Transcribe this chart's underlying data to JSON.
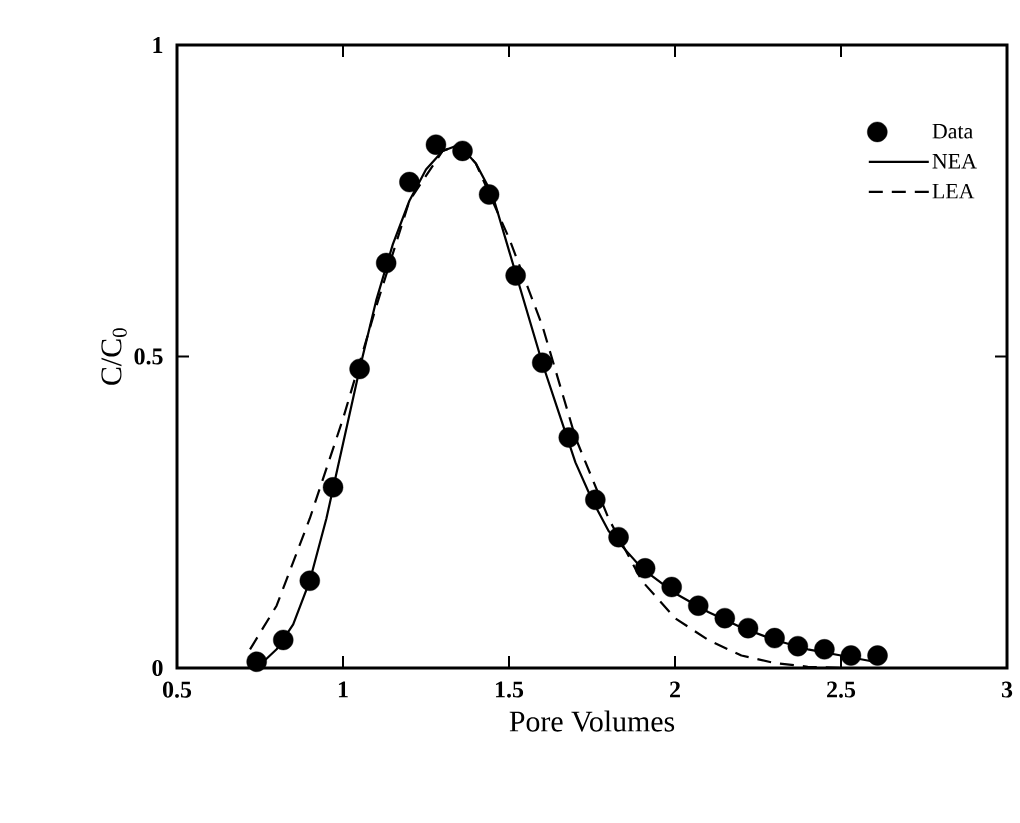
{
  "chart_data": {
    "type": "line",
    "xlabel": "Pore Volumes",
    "ylabel": "C/C$_{0}$",
    "xlim": [
      0.5,
      3
    ],
    "ylim": [
      0,
      1
    ],
    "xticks": [
      0.5,
      1,
      1.5,
      2,
      2.5,
      3
    ],
    "yticks": [
      0,
      0.5,
      1
    ],
    "grid": false,
    "legend": "top right",
    "series": [
      {
        "name": "Data",
        "type": "scatter",
        "marker": "circle",
        "color": "#000000",
        "x": [
          0.74,
          0.82,
          0.9,
          0.97,
          1.05,
          1.13,
          1.2,
          1.28,
          1.36,
          1.44,
          1.52,
          1.6,
          1.68,
          1.76,
          1.83,
          1.91,
          1.99,
          2.07,
          2.15,
          2.22,
          2.3,
          2.37,
          2.45,
          2.53,
          2.61
        ],
        "values": [
          0.01,
          0.045,
          0.14,
          0.29,
          0.48,
          0.65,
          0.78,
          0.84,
          0.83,
          0.76,
          0.63,
          0.49,
          0.37,
          0.27,
          0.21,
          0.16,
          0.13,
          0.1,
          0.08,
          0.064,
          0.048,
          0.035,
          0.03,
          0.02,
          0.02
        ]
      },
      {
        "name": "NEA",
        "line_style": "solid",
        "marker": "none",
        "color": "#000000",
        "x": [
          0.76,
          0.8,
          0.85,
          0.9,
          0.95,
          1.0,
          1.05,
          1.1,
          1.15,
          1.2,
          1.25,
          1.3,
          1.35,
          1.4,
          1.45,
          1.5,
          1.55,
          1.6,
          1.65,
          1.7,
          1.75,
          1.8,
          1.85,
          1.9,
          2.0,
          2.1,
          2.2,
          2.3,
          2.4,
          2.5,
          2.6
        ],
        "values": [
          0.01,
          0.03,
          0.07,
          0.14,
          0.24,
          0.36,
          0.48,
          0.59,
          0.68,
          0.75,
          0.8,
          0.83,
          0.84,
          0.81,
          0.76,
          0.67,
          0.58,
          0.49,
          0.41,
          0.33,
          0.27,
          0.22,
          0.19,
          0.16,
          0.12,
          0.09,
          0.065,
          0.045,
          0.03,
          0.02,
          0.01
        ]
      },
      {
        "name": "LEA",
        "line_style": "dashed",
        "marker": "none",
        "color": "#000000",
        "x": [
          0.72,
          0.8,
          0.9,
          1.0,
          1.1,
          1.2,
          1.3,
          1.35,
          1.4,
          1.5,
          1.6,
          1.7,
          1.8,
          1.9,
          2.0,
          2.1,
          2.2,
          2.3,
          2.4,
          2.5
        ],
        "values": [
          0.03,
          0.1,
          0.24,
          0.4,
          0.58,
          0.75,
          0.83,
          0.84,
          0.81,
          0.69,
          0.55,
          0.37,
          0.24,
          0.14,
          0.08,
          0.045,
          0.02,
          0.008,
          0.002,
          0
        ]
      }
    ]
  }
}
